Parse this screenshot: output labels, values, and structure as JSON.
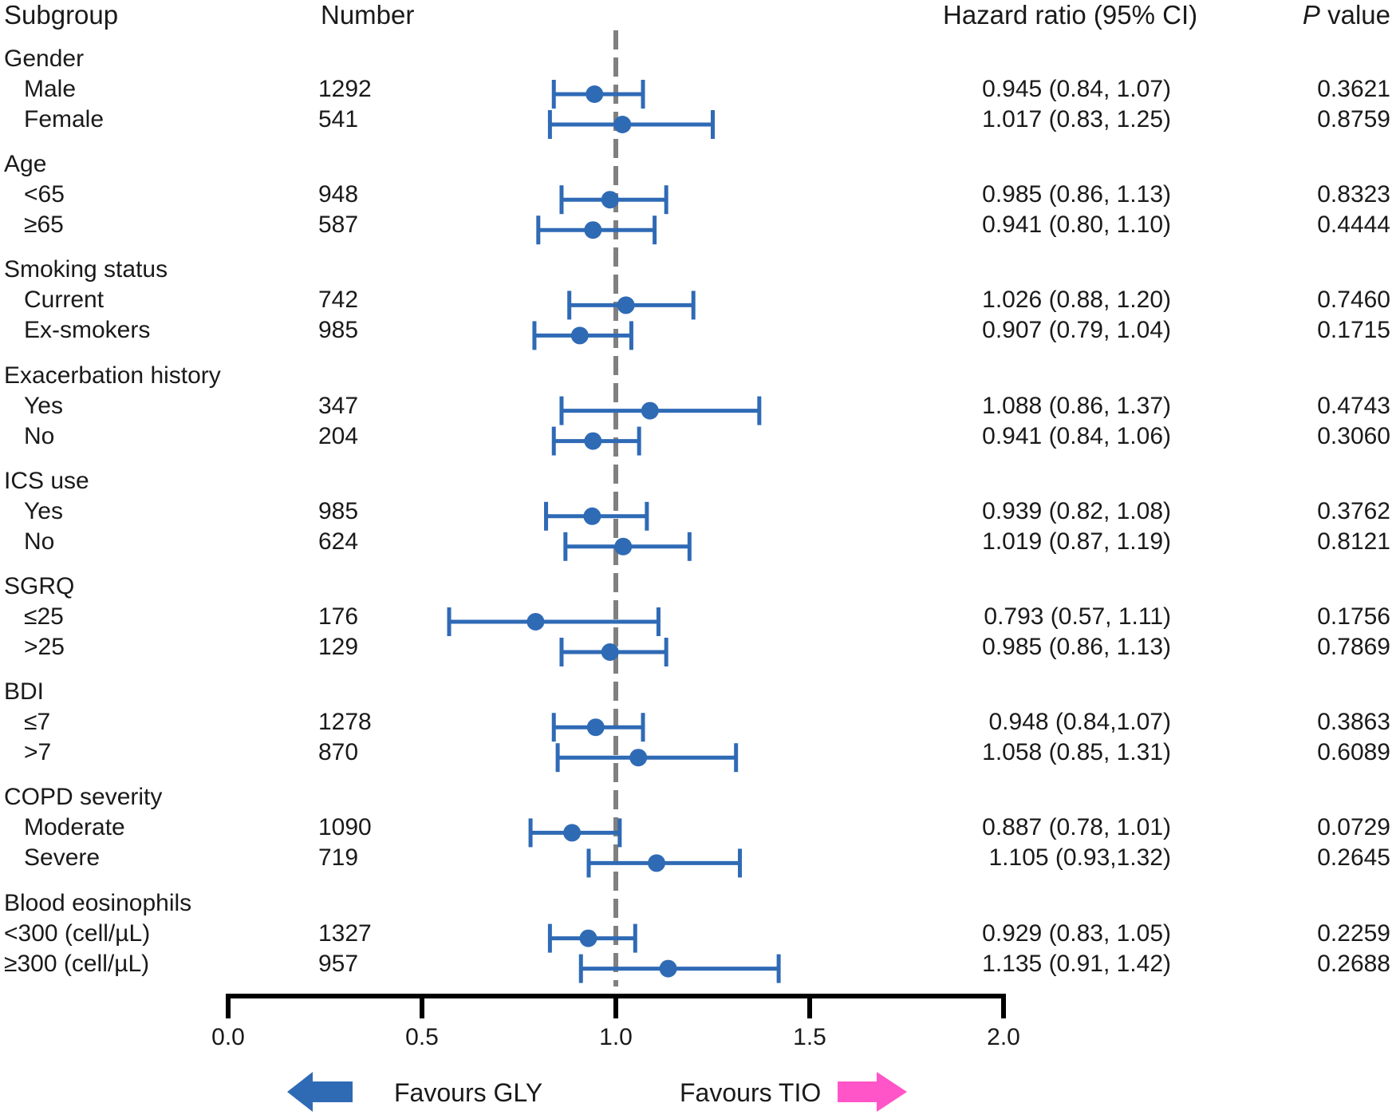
{
  "chart_data": {
    "type": "forest",
    "columns": {
      "subgroup": "Subgroup",
      "number": "Number",
      "hazard_ratio": "Hazard ratio (95% CI)",
      "p_italic": "P",
      "p_rest": " value"
    },
    "reference_line": 1.0,
    "xlim": [
      0.0,
      2.0
    ],
    "x_ticks": [
      "0.0",
      "0.5",
      "1.0",
      "1.5",
      "2.0"
    ],
    "x_tick_values": [
      0.0,
      0.5,
      1.0,
      1.5,
      2.0
    ],
    "groups": [
      {
        "name": "Gender",
        "rows": [
          {
            "label": "Male",
            "n": "1292",
            "hr": 0.945,
            "lo": 0.84,
            "hi": 1.07,
            "ci_text": "0.945 (0.84, 1.07)",
            "p": "0.3621"
          },
          {
            "label": "Female",
            "n": "541",
            "hr": 1.017,
            "lo": 0.83,
            "hi": 1.25,
            "ci_text": "1.017 (0.83, 1.25)",
            "p": "0.8759"
          }
        ]
      },
      {
        "name": "Age",
        "rows": [
          {
            "label": "<65",
            "n": "948",
            "hr": 0.985,
            "lo": 0.86,
            "hi": 1.13,
            "ci_text": "0.985 (0.86, 1.13)",
            "p": "0.8323"
          },
          {
            "label": "≥65",
            "n": "587",
            "hr": 0.941,
            "lo": 0.8,
            "hi": 1.1,
            "ci_text": "0.941 (0.80, 1.10)",
            "p": "0.4444"
          }
        ]
      },
      {
        "name": "Smoking status",
        "rows": [
          {
            "label": "Current",
            "n": "742",
            "hr": 1.026,
            "lo": 0.88,
            "hi": 1.2,
            "ci_text": "1.026 (0.88, 1.20)",
            "p": "0.7460"
          },
          {
            "label": "Ex-smokers",
            "n": "985",
            "hr": 0.907,
            "lo": 0.79,
            "hi": 1.04,
            "ci_text": "0.907 (0.79, 1.04)",
            "p": "0.1715"
          }
        ]
      },
      {
        "name": "Exacerbation history",
        "rows": [
          {
            "label": "Yes",
            "n": "347",
            "hr": 1.088,
            "lo": 0.86,
            "hi": 1.37,
            "ci_text": "1.088 (0.86, 1.37)",
            "p": "0.4743"
          },
          {
            "label": "No",
            "n": "204",
            "hr": 0.941,
            "lo": 0.84,
            "hi": 1.06,
            "ci_text": "0.941 (0.84, 1.06)",
            "p": "0.3060"
          }
        ]
      },
      {
        "name": "ICS use",
        "rows": [
          {
            "label": "Yes",
            "n": "985",
            "hr": 0.939,
            "lo": 0.82,
            "hi": 1.08,
            "ci_text": "0.939 (0.82, 1.08)",
            "p": "0.3762"
          },
          {
            "label": "No",
            "n": "624",
            "hr": 1.019,
            "lo": 0.87,
            "hi": 1.19,
            "ci_text": "1.019 (0.87, 1.19)",
            "p": "0.8121"
          }
        ]
      },
      {
        "name": "SGRQ",
        "rows": [
          {
            "label": "≤25",
            "n": "176",
            "hr": 0.793,
            "lo": 0.57,
            "hi": 1.11,
            "ci_text": "0.793 (0.57, 1.11)",
            "p": "0.1756"
          },
          {
            "label": ">25",
            "n": "129",
            "hr": 0.985,
            "lo": 0.86,
            "hi": 1.13,
            "ci_text": "0.985 (0.86, 1.13)",
            "p": "0.7869"
          }
        ]
      },
      {
        "name": "BDI",
        "rows": [
          {
            "label": "≤7",
            "n": "1278",
            "hr": 0.948,
            "lo": 0.84,
            "hi": 1.07,
            "ci_text": "0.948 (0.84,1.07)",
            "p": "0.3863"
          },
          {
            "label": ">7",
            "n": "870",
            "hr": 1.058,
            "lo": 0.85,
            "hi": 1.31,
            "ci_text": "1.058 (0.85, 1.31)",
            "p": "0.6089"
          }
        ]
      },
      {
        "name": "COPD severity",
        "rows": [
          {
            "label": "Moderate",
            "n": "1090",
            "hr": 0.887,
            "lo": 0.78,
            "hi": 1.01,
            "ci_text": "0.887 (0.78, 1.01)",
            "p": "0.0729"
          },
          {
            "label": "Severe",
            "n": "719",
            "hr": 1.105,
            "lo": 0.93,
            "hi": 1.32,
            "ci_text": "1.105 (0.93,1.32)",
            "p": "0.2645"
          }
        ]
      },
      {
        "name": "Blood eosinophils",
        "rows": [
          {
            "label": "<300 (cell/µL)",
            "n": "1327",
            "hr": 0.929,
            "lo": 0.83,
            "hi": 1.05,
            "ci_text": "0.929 (0.83, 1.05)",
            "p": "0.2259"
          },
          {
            "label": "≥300 (cell/µL)",
            "n": "957",
            "hr": 1.135,
            "lo": 0.91,
            "hi": 1.42,
            "ci_text": "1.135 (0.91, 1.42)",
            "p": "0.2688"
          }
        ]
      }
    ],
    "legend": {
      "left_label": "Favours GLY",
      "right_label": "Favours TIO",
      "left_color": "#2f6ab5",
      "right_color": "#ff55c8"
    },
    "colors": {
      "marker": "#2f6ab5",
      "reference_line": "#808080",
      "axis": "#000000"
    }
  }
}
